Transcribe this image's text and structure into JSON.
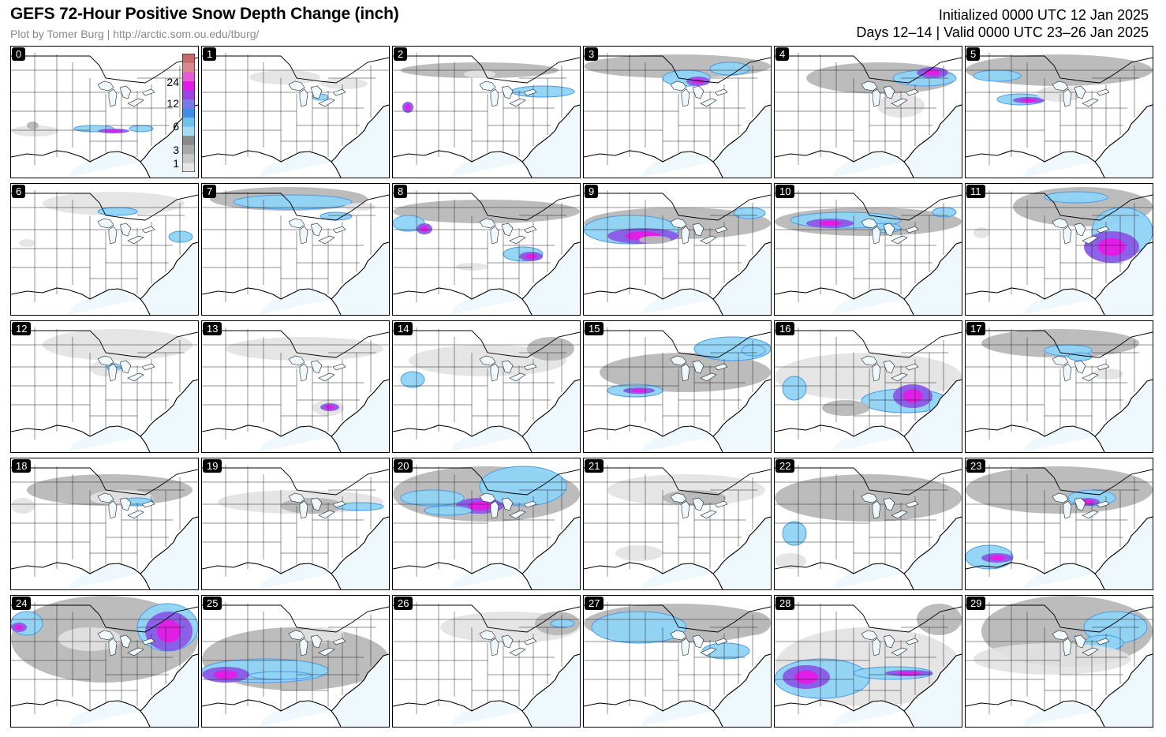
{
  "header": {
    "title": "GEFS 72-Hour Positive Snow Depth Change (inch)",
    "credit": "Plot by Tomer Burg | http://arctic.som.ou.edu/tburg/",
    "initialized": "Initialized 0000 UTC 12 Jan 2025",
    "valid": "Days 12–14 | Valid 0000 UTC 23–26 Jan 2025"
  },
  "colorbar": {
    "ticks": [
      "1",
      "3",
      "6",
      "12",
      "24"
    ],
    "colors": [
      "#e6e6e6",
      "#c8c8c8",
      "#a9a9a9",
      "#8a8a8a",
      "#a6dcf5",
      "#6ec2ee",
      "#3f8ee6",
      "#7b7be8",
      "#9a44e8",
      "#e21ce8",
      "#e85ad8",
      "#d88a8a",
      "#c76a6a"
    ]
  },
  "map_colors": {
    "ocean": "#eef8fd",
    "land": "#ffffff",
    "snow_light": "#e2e2e2",
    "snow_mid": "#b8b8b8",
    "snow_dark": "#8f8f8f",
    "snow_blue_light": "#8fd3f5",
    "snow_blue": "#4a9ae8",
    "snow_purple": "#8a5ae8",
    "snow_magenta": "#e01ee6"
  },
  "panels": [
    {
      "label": "0"
    },
    {
      "label": "1"
    },
    {
      "label": "2"
    },
    {
      "label": "3"
    },
    {
      "label": "4"
    },
    {
      "label": "5"
    },
    {
      "label": "6"
    },
    {
      "label": "7"
    },
    {
      "label": "8"
    },
    {
      "label": "9"
    },
    {
      "label": "10"
    },
    {
      "label": "11"
    },
    {
      "label": "12"
    },
    {
      "label": "13"
    },
    {
      "label": "14"
    },
    {
      "label": "15"
    },
    {
      "label": "16"
    },
    {
      "label": "17"
    },
    {
      "label": "18"
    },
    {
      "label": "19"
    },
    {
      "label": "20"
    },
    {
      "label": "21"
    },
    {
      "label": "22"
    },
    {
      "label": "23"
    },
    {
      "label": "24"
    },
    {
      "label": "25"
    },
    {
      "label": "26"
    },
    {
      "label": "27"
    },
    {
      "label": "28"
    },
    {
      "label": "29"
    }
  ]
}
